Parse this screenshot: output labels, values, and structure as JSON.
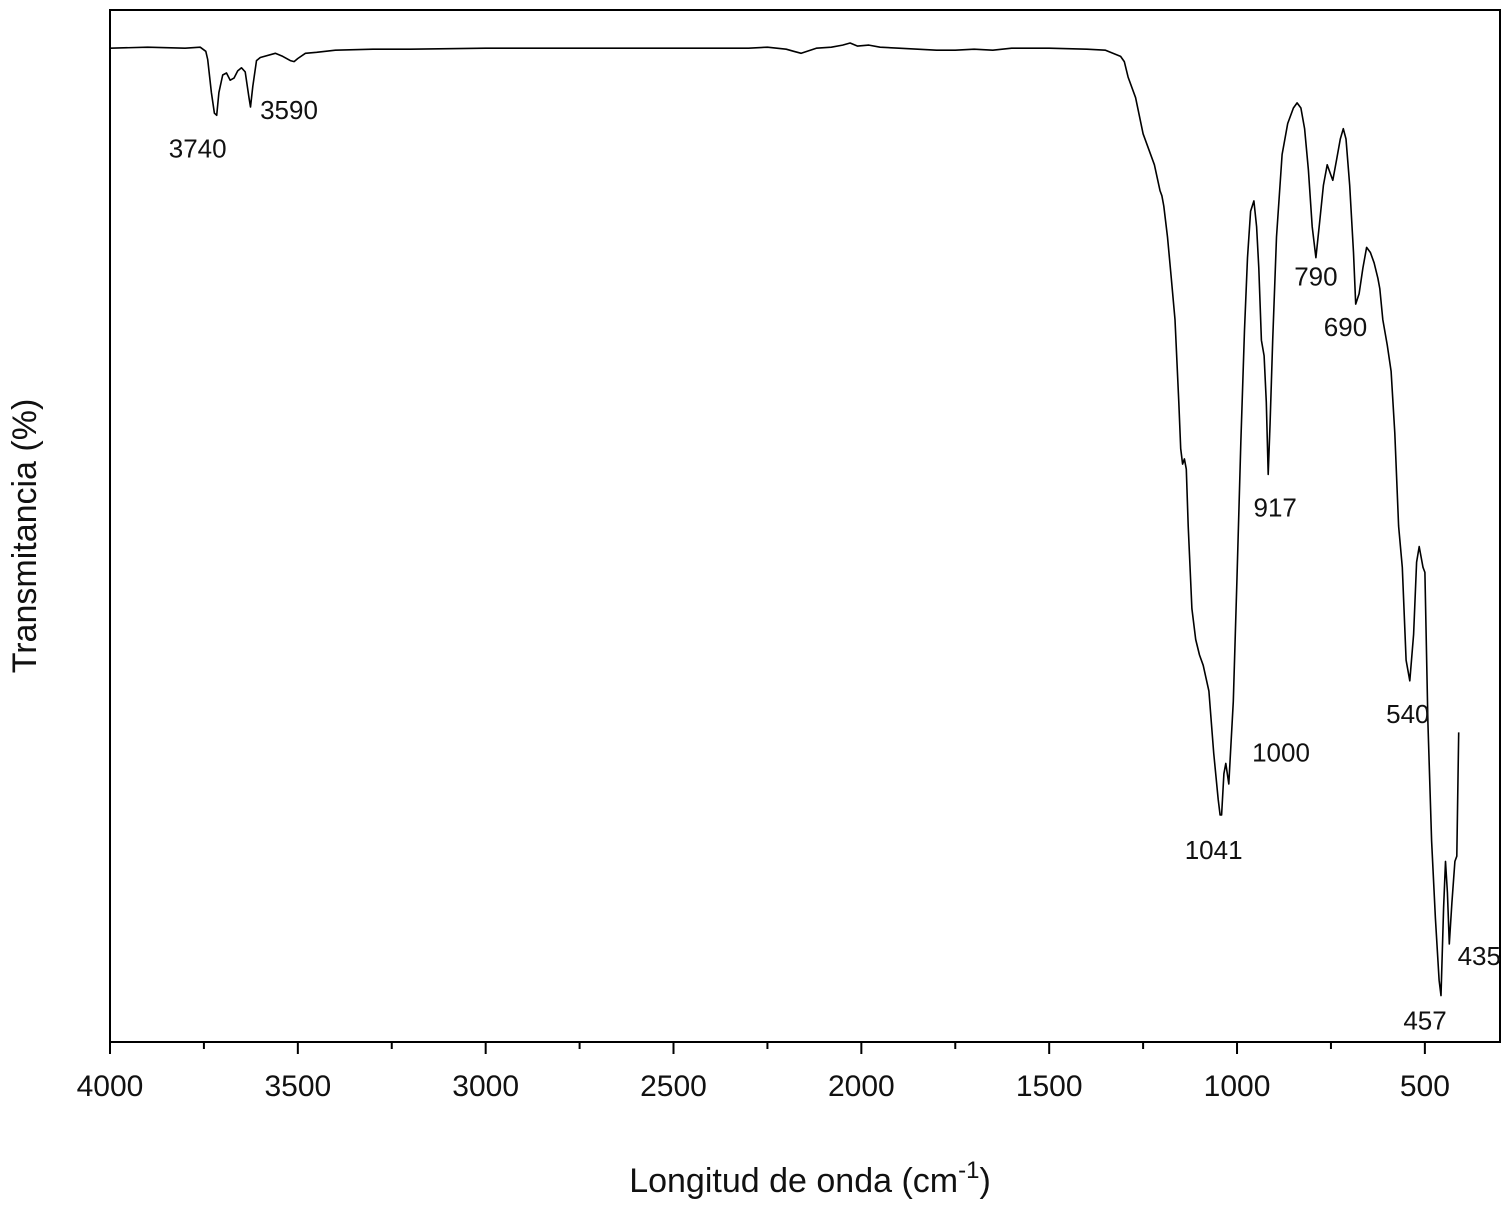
{
  "chart_data": {
    "type": "line",
    "xlabel": "Longitud de onda (cm",
    "xlabel_sup": "-1",
    "xlabel_end": ")",
    "ylabel": "Transmitancia (%)",
    "xlim": [
      4000,
      300
    ],
    "x_reversed": true,
    "ylim": [
      0,
      100
    ],
    "y_tick_labels": "none",
    "grid": false,
    "major_ticks": [
      4000,
      3500,
      3000,
      2500,
      2000,
      1500,
      1000,
      500
    ],
    "tick_labels": [
      "4000",
      "3500",
      "3000",
      "2500",
      "2000",
      "1500",
      "1000",
      "500"
    ],
    "minor_ticks": [
      3750,
      3250,
      2750,
      2250,
      1750,
      1250,
      750
    ],
    "series": [
      {
        "points": [
          [
            4000,
            96.3
          ],
          [
            3900,
            96.4
          ],
          [
            3800,
            96.3
          ],
          [
            3760,
            96.4
          ],
          [
            3745,
            96.0
          ],
          [
            3740,
            95.2
          ],
          [
            3730,
            92
          ],
          [
            3722,
            90
          ],
          [
            3716,
            89.8
          ],
          [
            3710,
            92
          ],
          [
            3700,
            93.7
          ],
          [
            3690,
            93.9
          ],
          [
            3680,
            93.2
          ],
          [
            3670,
            93.4
          ],
          [
            3660,
            94.1
          ],
          [
            3650,
            94.4
          ],
          [
            3640,
            94.0
          ],
          [
            3630,
            91.5
          ],
          [
            3626,
            90.6
          ],
          [
            3620,
            92.6
          ],
          [
            3610,
            95.1
          ],
          [
            3600,
            95.4
          ],
          [
            3560,
            95.8
          ],
          [
            3540,
            95.5
          ],
          [
            3520,
            95.1
          ],
          [
            3510,
            95.0
          ],
          [
            3500,
            95.3
          ],
          [
            3480,
            95.8
          ],
          [
            3450,
            95.9
          ],
          [
            3400,
            96.1
          ],
          [
            3300,
            96.2
          ],
          [
            3200,
            96.2
          ],
          [
            3000,
            96.3
          ],
          [
            2800,
            96.3
          ],
          [
            2500,
            96.3
          ],
          [
            2300,
            96.3
          ],
          [
            2250,
            96.4
          ],
          [
            2200,
            96.2
          ],
          [
            2180,
            96.0
          ],
          [
            2160,
            95.8
          ],
          [
            2120,
            96.3
          ],
          [
            2080,
            96.4
          ],
          [
            2050,
            96.6
          ],
          [
            2030,
            96.8
          ],
          [
            2010,
            96.5
          ],
          [
            1980,
            96.6
          ],
          [
            1950,
            96.4
          ],
          [
            1900,
            96.3
          ],
          [
            1850,
            96.2
          ],
          [
            1800,
            96.1
          ],
          [
            1750,
            96.1
          ],
          [
            1700,
            96.2
          ],
          [
            1650,
            96.1
          ],
          [
            1600,
            96.3
          ],
          [
            1500,
            96.3
          ],
          [
            1400,
            96.2
          ],
          [
            1350,
            96.1
          ],
          [
            1310,
            95.5
          ],
          [
            1300,
            95.0
          ],
          [
            1290,
            93.5
          ],
          [
            1270,
            91.5
          ],
          [
            1250,
            88.0
          ],
          [
            1220,
            85.0
          ],
          [
            1205,
            82.5
          ],
          [
            1200,
            82.0
          ],
          [
            1195,
            81.0
          ],
          [
            1185,
            78.0
          ],
          [
            1175,
            74.0
          ],
          [
            1165,
            70.0
          ],
          [
            1160,
            66.0
          ],
          [
            1155,
            62.0
          ],
          [
            1150,
            57.5
          ],
          [
            1145,
            56.0
          ],
          [
            1140,
            56.5
          ],
          [
            1135,
            55.5
          ],
          [
            1130,
            50.0
          ],
          [
            1120,
            42.0
          ],
          [
            1110,
            39.0
          ],
          [
            1100,
            37.5
          ],
          [
            1090,
            36.5
          ],
          [
            1075,
            34.0
          ],
          [
            1062,
            28.0
          ],
          [
            1050,
            23.5
          ],
          [
            1045,
            22.0
          ],
          [
            1041,
            22.0
          ],
          [
            1035,
            26.0
          ],
          [
            1030,
            27.0
          ],
          [
            1022,
            25.0
          ],
          [
            1010,
            33.0
          ],
          [
            1000,
            45.0
          ],
          [
            990,
            58.0
          ],
          [
            980,
            69.0
          ],
          [
            972,
            76.0
          ],
          [
            964,
            80.5
          ],
          [
            955,
            81.5
          ],
          [
            948,
            79.0
          ],
          [
            942,
            75.0
          ],
          [
            935,
            68.0
          ],
          [
            928,
            66.5
          ],
          [
            922,
            62.0
          ],
          [
            917,
            55.0
          ],
          [
            912,
            60.0
          ],
          [
            905,
            68.0
          ],
          [
            895,
            78.0
          ],
          [
            880,
            86.0
          ],
          [
            865,
            89.0
          ],
          [
            850,
            90.5
          ],
          [
            840,
            91.0
          ],
          [
            830,
            90.5
          ],
          [
            820,
            88.5
          ],
          [
            810,
            84.5
          ],
          [
            800,
            79.0
          ],
          [
            790,
            76.0
          ],
          [
            780,
            79.5
          ],
          [
            770,
            83.0
          ],
          [
            760,
            85.0
          ],
          [
            750,
            84.0
          ],
          [
            745,
            83.5
          ],
          [
            735,
            85.5
          ],
          [
            725,
            87.5
          ],
          [
            717,
            88.5
          ],
          [
            710,
            87.5
          ],
          [
            700,
            83.0
          ],
          [
            690,
            76.5
          ],
          [
            684,
            71.5
          ],
          [
            675,
            72.5
          ],
          [
            665,
            75.0
          ],
          [
            655,
            77.0
          ],
          [
            645,
            76.5
          ],
          [
            635,
            75.5
          ],
          [
            625,
            74.0
          ],
          [
            620,
            73.0
          ],
          [
            612,
            70.0
          ],
          [
            600,
            67.5
          ],
          [
            590,
            65.0
          ],
          [
            580,
            59.0
          ],
          [
            570,
            50.0
          ],
          [
            560,
            46.0
          ],
          [
            550,
            37.0
          ],
          [
            540,
            35.0
          ],
          [
            530,
            39.5
          ],
          [
            522,
            46.5
          ],
          [
            515,
            48.0
          ],
          [
            510,
            47.0
          ],
          [
            505,
            46.0
          ],
          [
            500,
            45.5
          ],
          [
            492,
            31.0
          ],
          [
            482,
            19.5
          ],
          [
            472,
            12.0
          ],
          [
            462,
            6.0
          ],
          [
            457,
            4.5
          ],
          [
            450,
            13.0
          ],
          [
            445,
            17.5
          ],
          [
            440,
            14.5
          ],
          [
            435,
            9.5
          ],
          [
            428,
            13.5
          ],
          [
            420,
            17.5
          ],
          [
            415,
            18.0
          ],
          [
            410,
            30.0
          ]
        ]
      }
    ],
    "annotations": [
      {
        "text": "3740",
        "x": 3740,
        "y": 89.8
      },
      {
        "text": "3590",
        "x": 3590,
        "y": 90.6
      },
      {
        "text": "1041",
        "x": 1041,
        "y": 22.0
      },
      {
        "text": "1000",
        "x": 1000,
        "y": 27.0
      },
      {
        "text": "917",
        "x": 917,
        "y": 55.0
      },
      {
        "text": "790",
        "x": 790,
        "y": 76.0
      },
      {
        "text": "690",
        "x": 690,
        "y": 71.5
      },
      {
        "text": "540",
        "x": 540,
        "y": 35.0
      },
      {
        "text": "457",
        "x": 457,
        "y": 4.5
      },
      {
        "text": "435",
        "x": 435,
        "y": 9.5
      }
    ]
  }
}
